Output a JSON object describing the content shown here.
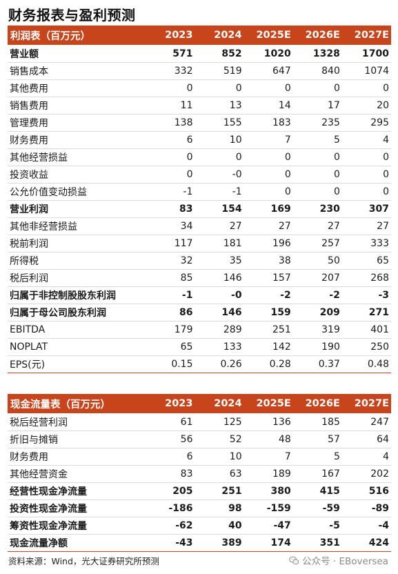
{
  "page_title": "财务报表与盈利预测",
  "income_statement": {
    "header": {
      "label": "利润表（百万元）",
      "years": [
        "2023",
        "2024",
        "2025E",
        "2026E",
        "2027E"
      ]
    },
    "rows": [
      {
        "label": "营业额",
        "values": [
          "571",
          "852",
          "1020",
          "1328",
          "1700"
        ],
        "bold": true
      },
      {
        "label": "销售成本",
        "values": [
          "332",
          "519",
          "647",
          "840",
          "1074"
        ],
        "bold": false
      },
      {
        "label": "其他费用",
        "values": [
          "0",
          "0",
          "0",
          "0",
          "0"
        ],
        "bold": false
      },
      {
        "label": "销售费用",
        "values": [
          "11",
          "13",
          "14",
          "17",
          "20"
        ],
        "bold": false
      },
      {
        "label": "管理费用",
        "values": [
          "138",
          "155",
          "183",
          "235",
          "295"
        ],
        "bold": false
      },
      {
        "label": "财务费用",
        "values": [
          "6",
          "10",
          "7",
          "5",
          "4"
        ],
        "bold": false
      },
      {
        "label": "其他经营损益",
        "values": [
          "0",
          "0",
          "0",
          "0",
          "0"
        ],
        "bold": false
      },
      {
        "label": "投资收益",
        "values": [
          "0",
          "-0",
          "0",
          "0",
          "0"
        ],
        "bold": false
      },
      {
        "label": "公允价值变动损益",
        "values": [
          "-1",
          "-1",
          "0",
          "0",
          "0"
        ],
        "bold": false
      },
      {
        "label": "营业利润",
        "values": [
          "83",
          "154",
          "169",
          "230",
          "307"
        ],
        "bold": true
      },
      {
        "label": "其他非经营损益",
        "values": [
          "34",
          "27",
          "27",
          "27",
          "27"
        ],
        "bold": false
      },
      {
        "label": "税前利润",
        "values": [
          "117",
          "181",
          "196",
          "257",
          "333"
        ],
        "bold": false
      },
      {
        "label": "所得税",
        "values": [
          "32",
          "35",
          "38",
          "50",
          "65"
        ],
        "bold": false
      },
      {
        "label": "税后利润",
        "values": [
          "85",
          "146",
          "157",
          "207",
          "268"
        ],
        "bold": false
      },
      {
        "label": "归属于非控制股股东利润",
        "values": [
          "-1",
          "-0",
          "-2",
          "-2",
          "-3"
        ],
        "bold": true
      },
      {
        "label": "归属于母公司股东利润",
        "values": [
          "86",
          "146",
          "159",
          "209",
          "271"
        ],
        "bold": true
      },
      {
        "label": "EBITDA",
        "values": [
          "179",
          "289",
          "251",
          "319",
          "401"
        ],
        "bold": false
      },
      {
        "label": "NOPLAT",
        "values": [
          "65",
          "133",
          "142",
          "190",
          "250"
        ],
        "bold": false
      },
      {
        "label": "EPS(元)",
        "values": [
          "0.15",
          "0.26",
          "0.28",
          "0.37",
          "0.48"
        ],
        "bold": false
      }
    ]
  },
  "cash_flow": {
    "header": {
      "label": "现金流量表（百万元）",
      "years": [
        "2023",
        "2024",
        "2025E",
        "2026E",
        "2027E"
      ]
    },
    "rows": [
      {
        "label": "税后经营利润",
        "values": [
          "61",
          "125",
          "136",
          "185",
          "247"
        ],
        "bold": false
      },
      {
        "label": "折旧与摊销",
        "values": [
          "56",
          "52",
          "48",
          "57",
          "64"
        ],
        "bold": false
      },
      {
        "label": "财务费用",
        "values": [
          "6",
          "10",
          "7",
          "5",
          "4"
        ],
        "bold": false
      },
      {
        "label": "其他经营资金",
        "values": [
          "83",
          "63",
          "189",
          "167",
          "202"
        ],
        "bold": false
      },
      {
        "label": "经营性现金净流量",
        "values": [
          "205",
          "251",
          "380",
          "415",
          "516"
        ],
        "bold": true
      },
      {
        "label": "投资性现金净流量",
        "values": [
          "-186",
          "98",
          "-159",
          "-59",
          "-89"
        ],
        "bold": true
      },
      {
        "label": "筹资性现金净流量",
        "values": [
          "-62",
          "40",
          "-47",
          "-5",
          "-4"
        ],
        "bold": true
      },
      {
        "label": "现金流量净额",
        "values": [
          "-43",
          "389",
          "174",
          "351",
          "424"
        ],
        "bold": true
      }
    ]
  },
  "source_note": "资料来源：Wind，光大证券研究所预测",
  "watermark": "公众号 · EBoversea",
  "colors": {
    "header_bg": "#c8451c",
    "header_text": "#ffffff",
    "row_border": "#d9d9d9"
  }
}
